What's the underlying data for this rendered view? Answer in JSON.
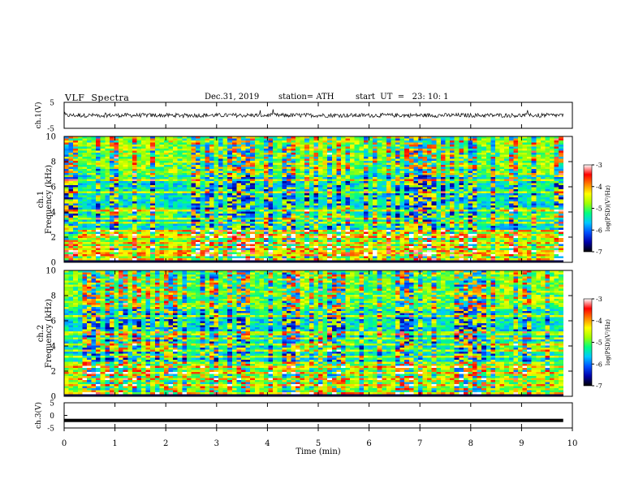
{
  "header": {
    "title": "VLF  Spectra",
    "date": "Dec.31, 2019",
    "station": "station= ATH",
    "start_ut": "start  UT  =   23: 10: 1"
  },
  "chart_data": [
    {
      "type": "line",
      "panel": "ch1-waveform",
      "ylabel": "ch.1(V)",
      "ylim": [
        -5,
        5
      ],
      "yticks": [
        "5",
        "-5"
      ],
      "xlim": [
        0,
        10
      ],
      "baseline": 0,
      "color": "#000000"
    },
    {
      "type": "heatmap",
      "panel": "ch1-spectrogram",
      "ylabel_line1": "ch.1",
      "ylabel_line2": "Frequency  (kHz)",
      "ylim": [
        0,
        10
      ],
      "yticks": [
        "0",
        "2",
        "4",
        "6",
        "8",
        "10"
      ],
      "xlim": [
        0,
        10
      ],
      "data_end_min": 9.82,
      "colorbar": {
        "label": "log(PSD)(V²/Hz)",
        "range": [
          -7,
          -3
        ],
        "ticks": [
          "-3",
          "-4",
          "-5",
          "-6",
          "-7"
        ],
        "colors": [
          "#000000",
          "#0000aa",
          "#0050ff",
          "#00c8ff",
          "#00ff80",
          "#a0ff00",
          "#ffff00",
          "#ff8000",
          "#ff0000",
          "#ffffff"
        ]
      },
      "strong_lines_khz": [
        0.2,
        0.5,
        0.8,
        1.2,
        1.6,
        2.1,
        2.5,
        3.1,
        3.5,
        4.1,
        5.5,
        6.6
      ],
      "bright_intervals_min": [
        [
          0.7,
          2.25
        ],
        [
          4.5,
          5.7
        ],
        [
          8.55,
          9.8
        ]
      ]
    },
    {
      "type": "heatmap",
      "panel": "ch2-spectrogram",
      "ylabel_line1": "ch.2",
      "ylabel_line2": "Frequency  (kHz)",
      "ylim": [
        0,
        10
      ],
      "yticks": [
        "0",
        "2",
        "4",
        "6",
        "8",
        "10"
      ],
      "xlim": [
        0,
        10
      ],
      "data_end_min": 9.82,
      "colorbar": {
        "label": "log(PSD)(V²/Hz)",
        "range": [
          -7,
          -3
        ],
        "ticks": [
          "-3",
          "-4",
          "-5",
          "-6",
          "-7"
        ],
        "colors": [
          "#000000",
          "#0000aa",
          "#0050ff",
          "#00c8ff",
          "#00ff80",
          "#a0ff00",
          "#ffff00",
          "#ff8000",
          "#ff0000",
          "#ffffff"
        ]
      },
      "strong_lines_khz": [
        0.3,
        0.9,
        1.4,
        1.8,
        2.3,
        2.7,
        3.1,
        3.6,
        4.1,
        4.6,
        5.0,
        6.4
      ],
      "bright_intervals_min": [
        [
          0.7,
          2.25
        ],
        [
          4.5,
          5.7
        ],
        [
          8.55,
          9.8
        ]
      ]
    },
    {
      "type": "line",
      "panel": "ch3-waveform",
      "ylabel": "ch.3(V)",
      "ylim": [
        -5,
        5
      ],
      "yticks": [
        "5",
        "0",
        "-5"
      ],
      "xlim": [
        0,
        10
      ],
      "xticks": [
        "0",
        "1",
        "2",
        "3",
        "4",
        "5",
        "6",
        "7",
        "8",
        "9",
        "10"
      ],
      "xlabel": "Time  (min)",
      "baseline": -2,
      "color": "#000000"
    }
  ]
}
